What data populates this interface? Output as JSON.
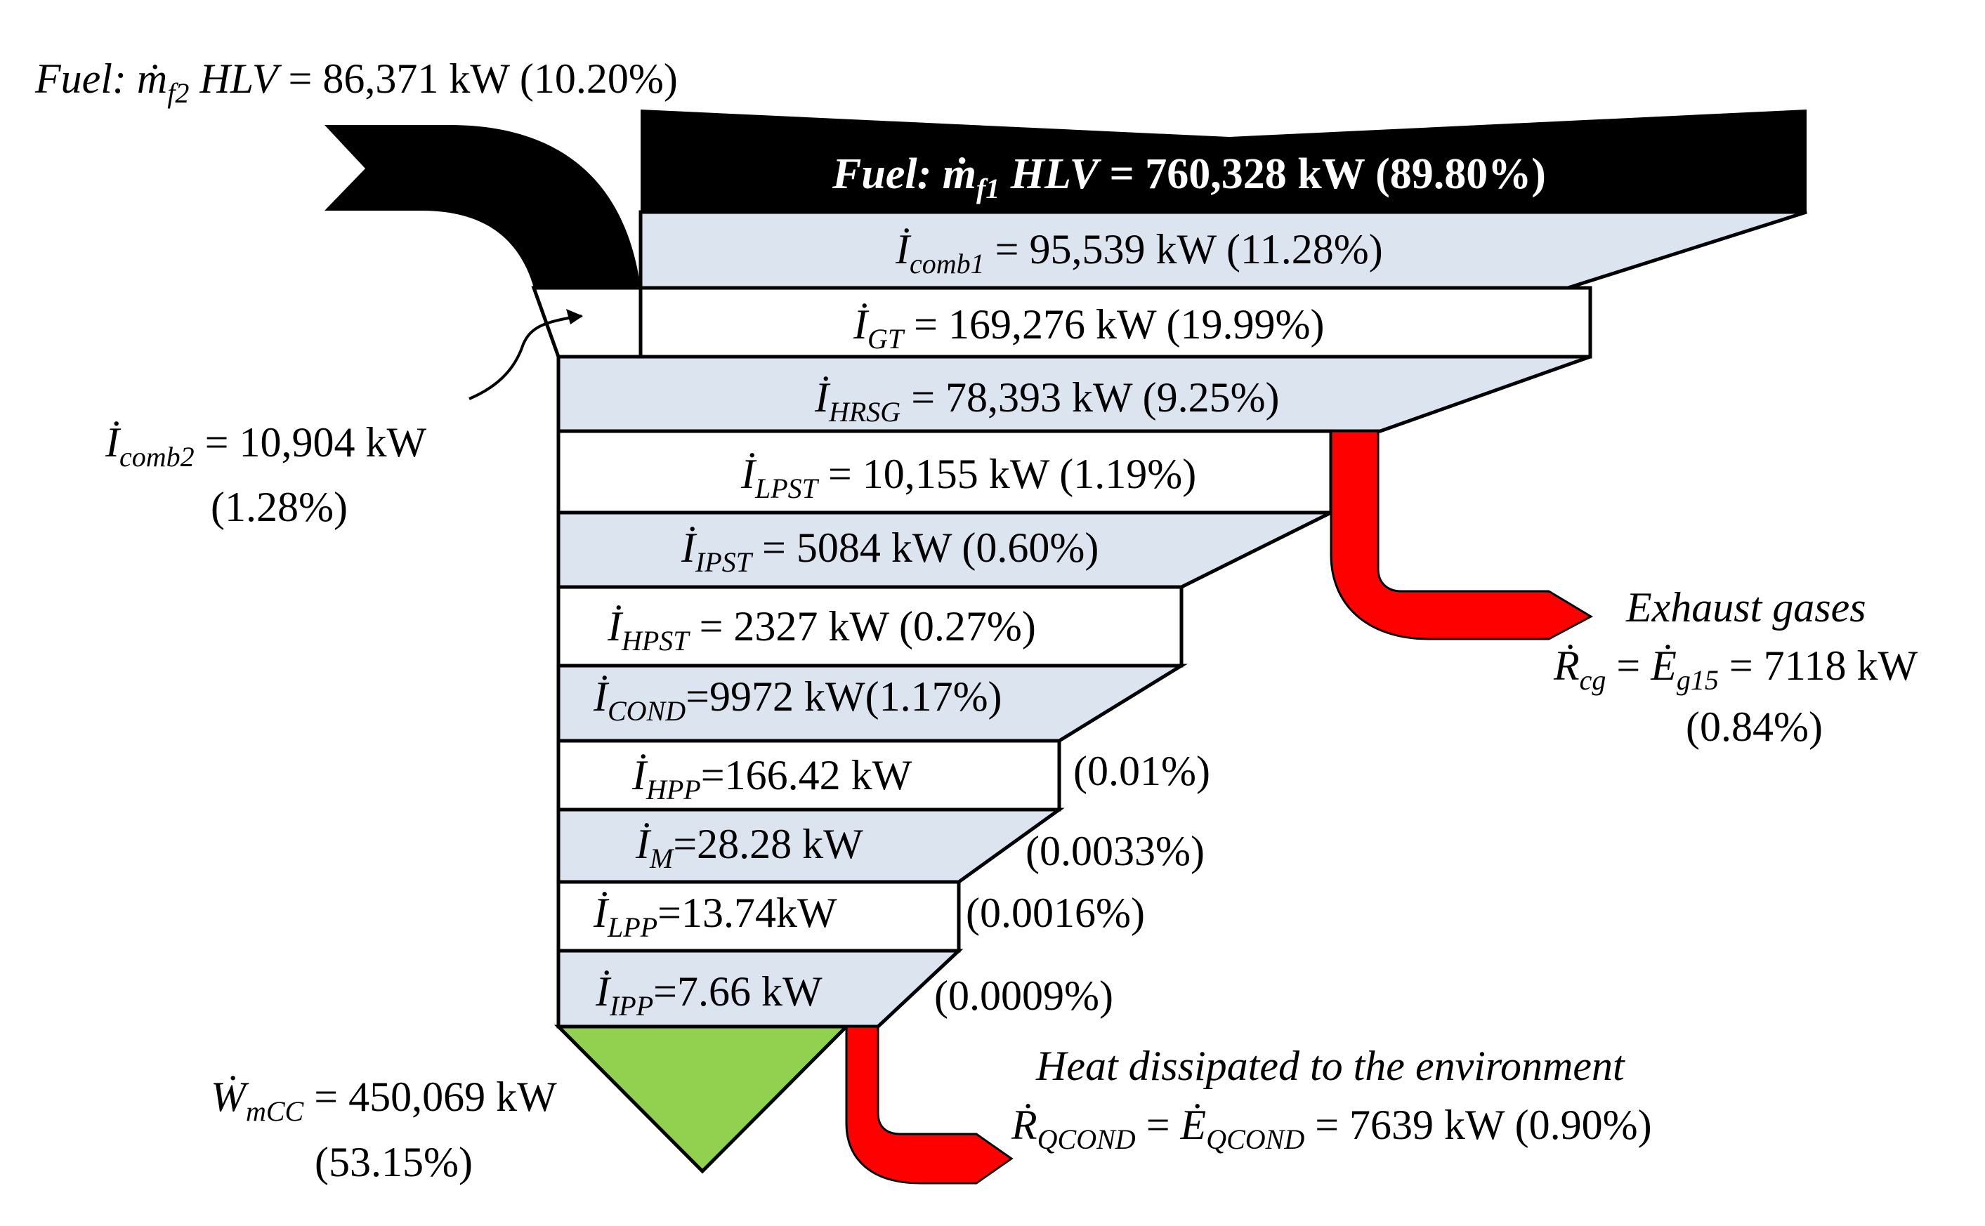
{
  "colors": {
    "fuel": "#000000",
    "irreversibility_band": "#dce4f0",
    "white_band": "#ffffff",
    "loss": "#ff0000",
    "work": "#92d050",
    "outline": "#000000"
  },
  "fuel2": {
    "text": "Fuel: ṁ",
    "sub": "f2",
    "text2": " HLV",
    "text3": " = 86,371 kW (10.20%)"
  },
  "fuel1": {
    "text": "Fuel: ṁ",
    "sub": "f1",
    "text2": " HLV",
    "text3": " = 760,328 kW (89.80%)"
  },
  "bands": [
    {
      "sym": "İ",
      "sub": "comb1",
      "text": " = 95,539 kW (11.28%)",
      "side": ""
    },
    {
      "sym": "İ",
      "sub": "GT",
      "text": " = 169,276 kW (19.99%)",
      "side": ""
    },
    {
      "sym": "İ",
      "sub": "HRSG",
      "text": " = 78,393 kW (9.25%)",
      "side": ""
    },
    {
      "sym": "İ",
      "sub": "LPST",
      "text": " = 10,155 kW (1.19%)",
      "side": ""
    },
    {
      "sym": "İ",
      "sub": "IPST",
      "text": " = 5084 kW (0.60%)",
      "side": ""
    },
    {
      "sym": "İ",
      "sub": "HPST",
      "text": " = 2327 kW (0.27%)",
      "side": ""
    },
    {
      "sym": "İ",
      "sub": "COND",
      "text": "=9972 kW(1.17%)",
      "side": ""
    },
    {
      "sym": "İ",
      "sub": "HPP",
      "text": "=166.42 kW",
      "side": "(0.01%)"
    },
    {
      "sym": "İ",
      "sub": "M",
      "text": "=28.28 kW",
      "side": "(0.0033%)"
    },
    {
      "sym": "İ",
      "sub": "LPP",
      "text": "=13.74kW",
      "side": "(0.0016%)"
    },
    {
      "sym": "İ",
      "sub": "IPP",
      "text": "=7.66 kW",
      "side": "(0.0009%)"
    }
  ],
  "comb2": {
    "sym": "İ",
    "sub": "comb2",
    "text": " = 10,904 kW",
    "pct": "(1.28%)"
  },
  "exhaust": {
    "title": "Exhaust gases",
    "sym1": "Ṙ",
    "sub1": "cg",
    "eq": " = ",
    "sym2": "Ė",
    "sub2": "g15",
    "text": " = 7118 kW",
    "pct": "(0.84%)"
  },
  "heat": {
    "title": "Heat dissipated to the environment",
    "sym1": "Ṙ",
    "sub1": "QCOND",
    "eq": " = ",
    "sym2": "Ė",
    "sub2": "QCOND",
    "text": " = 7639 kW (0.90%)"
  },
  "work": {
    "sym": "Ẇ",
    "sub": "mCC",
    "text": " = 450,069 kW",
    "pct": "(53.15%)"
  }
}
